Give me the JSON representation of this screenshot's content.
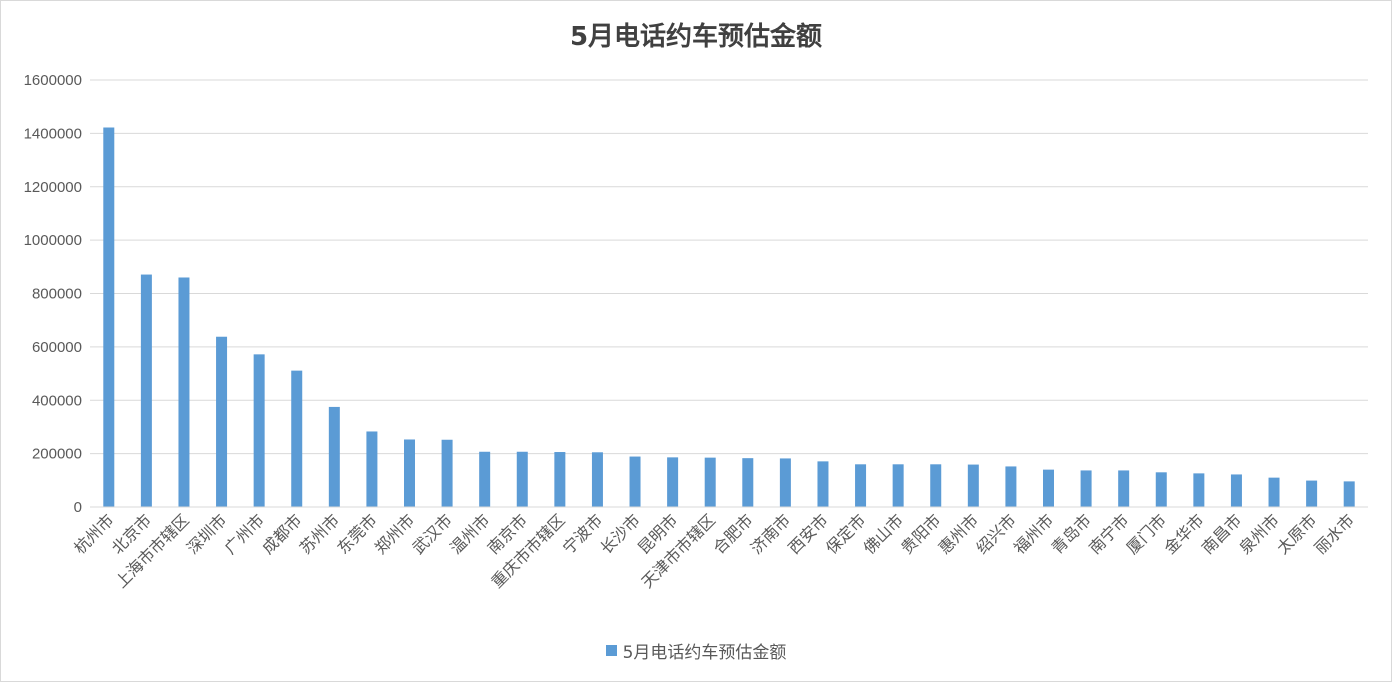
{
  "chart_data": {
    "type": "bar",
    "title": "5月电话约车预估金额",
    "xlabel": "",
    "ylabel": "",
    "ylim": [
      0,
      1600000
    ],
    "yticks": [
      0,
      200000,
      400000,
      600000,
      800000,
      1000000,
      1200000,
      1400000,
      1600000
    ],
    "ytick_labels": [
      "0",
      "200000",
      "400000",
      "600000",
      "800000",
      "1000000",
      "1200000",
      "1400000",
      "1600000"
    ],
    "grid": true,
    "legend_position": "bottom",
    "bar_color": "#5b9bd5",
    "categories": [
      "杭州市",
      "北京市",
      "上海市市辖区",
      "深圳市",
      "广州市",
      "成都市",
      "苏州市",
      "东莞市",
      "郑州市",
      "武汉市",
      "温州市",
      "南京市",
      "重庆市市辖区",
      "宁波市",
      "长沙市",
      "昆明市",
      "天津市市辖区",
      "合肥市",
      "济南市",
      "西安市",
      "保定市",
      "佛山市",
      "贵阳市",
      "惠州市",
      "绍兴市",
      "福州市",
      "青岛市",
      "南宁市",
      "厦门市",
      "金华市",
      "南昌市",
      "泉州市",
      "太原市",
      "丽水市"
    ],
    "series": [
      {
        "name": "5月电话约车预估金额",
        "values": [
          1422000,
          871000,
          860000,
          638000,
          572000,
          511000,
          375000,
          283000,
          253000,
          252000,
          207000,
          207000,
          206000,
          205000,
          189000,
          186000,
          185000,
          183000,
          182000,
          171000,
          160000,
          160000,
          160000,
          159000,
          152000,
          140000,
          137000,
          137000,
          130000,
          126000,
          122000,
          110000,
          99000,
          96000
        ]
      }
    ]
  }
}
